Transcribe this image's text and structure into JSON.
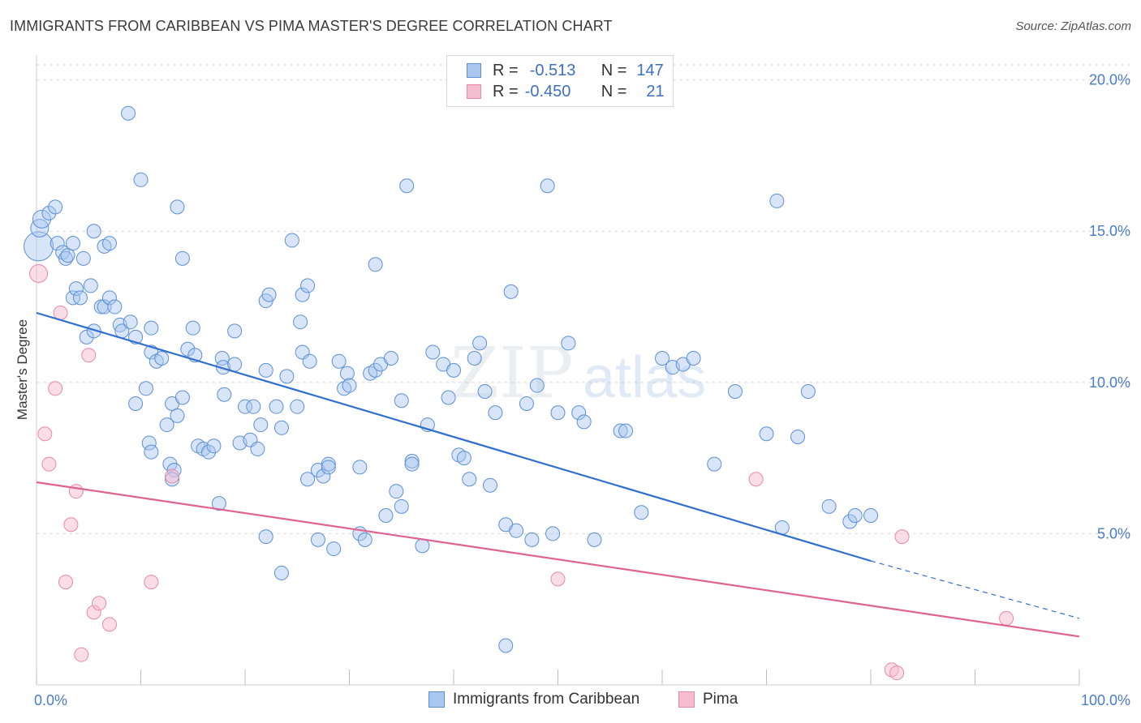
{
  "title": "IMMIGRANTS FROM CARIBBEAN VS PIMA MASTER'S DEGREE CORRELATION CHART",
  "source": "Source: ZipAtlas.com",
  "watermark": {
    "zip": "ZIP",
    "atlas": "atlas"
  },
  "legend": {
    "rows": [
      {
        "r_label": "R =",
        "r_value": "-0.513",
        "n_label": "N =",
        "n_value": "147"
      },
      {
        "r_label": "R =",
        "r_value": "-0.450",
        "n_label": "N =",
        "n_value": "21"
      }
    ]
  },
  "colors": {
    "blue_fill": "#a9c6ef",
    "blue_stroke": "#5b8fd6",
    "blue_line": "#2f6fd0",
    "pink_fill": "#f6bcd0",
    "pink_stroke": "#e889a8",
    "pink_line": "#e0628f",
    "grid": "#d9d9d9"
  },
  "chart_data": {
    "type": "scatter",
    "title": "IMMIGRANTS FROM CARIBBEAN VS PIMA MASTER'S DEGREE CORRELATION CHART",
    "xlabel": "",
    "ylabel": "Master's Degree",
    "xlim": [
      0,
      100
    ],
    "ylim": [
      0,
      20.5
    ],
    "x_tick_labels": [
      "0.0%",
      "100.0%"
    ],
    "y_ticks": [
      5,
      10,
      15,
      20
    ],
    "y_tick_labels": [
      "5.0%",
      "10.0%",
      "15.0%",
      "20.0%"
    ],
    "grid": true,
    "legend_position": "bottom",
    "series": [
      {
        "name": "Immigrants from Caribbean",
        "r": -0.513,
        "n": 147,
        "trend": {
          "x0": 0,
          "y0": 12.3,
          "x1": 80,
          "y1": 4.1,
          "dash_to": 100,
          "dash_y": 2.2
        },
        "points": [
          [
            0.2,
            14.5
          ],
          [
            0.3,
            15.1
          ],
          [
            0.5,
            15.4
          ],
          [
            1.2,
            15.6
          ],
          [
            1.8,
            15.8
          ],
          [
            2.0,
            14.6
          ],
          [
            2.5,
            14.3
          ],
          [
            2.8,
            14.1
          ],
          [
            3.0,
            14.2
          ],
          [
            3.5,
            14.6
          ],
          [
            4.5,
            14.1
          ],
          [
            3.5,
            12.8
          ],
          [
            3.8,
            13.1
          ],
          [
            4.2,
            12.8
          ],
          [
            5.2,
            13.2
          ],
          [
            5.5,
            15.0
          ],
          [
            6.5,
            14.5
          ],
          [
            7.0,
            14.6
          ],
          [
            6.2,
            12.5
          ],
          [
            6.5,
            12.5
          ],
          [
            7.0,
            12.8
          ],
          [
            7.5,
            12.5
          ],
          [
            8.0,
            11.9
          ],
          [
            8.2,
            11.7
          ],
          [
            9.0,
            12.0
          ],
          [
            9.5,
            11.5
          ],
          [
            4.8,
            11.5
          ],
          [
            5.5,
            11.7
          ],
          [
            8.8,
            18.9
          ],
          [
            10.0,
            16.7
          ],
          [
            11.0,
            11.0
          ],
          [
            11.5,
            10.7
          ],
          [
            12.0,
            10.8
          ],
          [
            11.0,
            11.8
          ],
          [
            13.5,
            15.8
          ],
          [
            14.5,
            11.1
          ],
          [
            15.0,
            11.8
          ],
          [
            15.2,
            10.9
          ],
          [
            14.0,
            14.1
          ],
          [
            10.5,
            9.8
          ],
          [
            9.5,
            9.3
          ],
          [
            10.8,
            8.0
          ],
          [
            11.0,
            7.7
          ],
          [
            12.5,
            8.6
          ],
          [
            13.0,
            9.3
          ],
          [
            13.5,
            8.9
          ],
          [
            14.0,
            9.5
          ],
          [
            12.8,
            7.3
          ],
          [
            13.2,
            7.1
          ],
          [
            13.0,
            6.8
          ],
          [
            15.5,
            7.9
          ],
          [
            16.0,
            7.8
          ],
          [
            16.5,
            7.7
          ],
          [
            17.0,
            7.9
          ],
          [
            17.5,
            6.0
          ],
          [
            18.0,
            9.6
          ],
          [
            17.8,
            10.8
          ],
          [
            17.9,
            10.5
          ],
          [
            19.0,
            10.6
          ],
          [
            19.0,
            11.7
          ],
          [
            20.0,
            9.2
          ],
          [
            19.5,
            8.0
          ],
          [
            20.5,
            8.1
          ],
          [
            20.8,
            9.2
          ],
          [
            21.2,
            7.8
          ],
          [
            21.5,
            8.6
          ],
          [
            22.0,
            10.4
          ],
          [
            22.0,
            12.7
          ],
          [
            22.3,
            12.9
          ],
          [
            23.0,
            9.2
          ],
          [
            23.5,
            8.5
          ],
          [
            24.0,
            10.2
          ],
          [
            24.5,
            14.7
          ],
          [
            25.0,
            9.2
          ],
          [
            25.3,
            12.0
          ],
          [
            25.5,
            12.9
          ],
          [
            26.0,
            13.2
          ],
          [
            25.5,
            11.0
          ],
          [
            26.2,
            10.7
          ],
          [
            27.0,
            7.1
          ],
          [
            28.0,
            7.3
          ],
          [
            27.5,
            6.9
          ],
          [
            28.0,
            7.2
          ],
          [
            28.5,
            4.5
          ],
          [
            26.0,
            6.8
          ],
          [
            27.0,
            4.8
          ],
          [
            22.0,
            4.9
          ],
          [
            23.5,
            3.7
          ],
          [
            29.0,
            10.7
          ],
          [
            29.5,
            9.8
          ],
          [
            29.8,
            10.3
          ],
          [
            30.0,
            9.9
          ],
          [
            31.0,
            7.2
          ],
          [
            32.0,
            10.3
          ],
          [
            32.5,
            10.4
          ],
          [
            33.0,
            10.6
          ],
          [
            34.0,
            10.8
          ],
          [
            35.0,
            9.4
          ],
          [
            36.0,
            7.4
          ],
          [
            34.5,
            6.4
          ],
          [
            35.0,
            5.9
          ],
          [
            33.5,
            5.6
          ],
          [
            31.0,
            5.0
          ],
          [
            31.5,
            4.8
          ],
          [
            32.5,
            13.9
          ],
          [
            35.5,
            16.5
          ],
          [
            36.0,
            7.3
          ],
          [
            37.0,
            4.6
          ],
          [
            37.5,
            8.6
          ],
          [
            38.0,
            11.0
          ],
          [
            39.0,
            10.6
          ],
          [
            39.5,
            9.5
          ],
          [
            40.0,
            10.4
          ],
          [
            40.5,
            7.6
          ],
          [
            41.0,
            7.5
          ],
          [
            41.5,
            6.8
          ],
          [
            42.0,
            10.8
          ],
          [
            42.5,
            11.3
          ],
          [
            43.0,
            9.7
          ],
          [
            43.5,
            6.6
          ],
          [
            44.0,
            9.0
          ],
          [
            45.0,
            5.3
          ],
          [
            45.5,
            13.0
          ],
          [
            46.0,
            5.1
          ],
          [
            47.0,
            9.3
          ],
          [
            47.5,
            4.8
          ],
          [
            48.0,
            9.9
          ],
          [
            49.0,
            16.5
          ],
          [
            49.5,
            5.0
          ],
          [
            50.0,
            9.0
          ],
          [
            51.0,
            11.3
          ],
          [
            52.0,
            9.0
          ],
          [
            52.5,
            8.7
          ],
          [
            53.5,
            4.8
          ],
          [
            56.0,
            8.4
          ],
          [
            56.5,
            8.4
          ],
          [
            58.0,
            5.7
          ],
          [
            60.0,
            10.8
          ],
          [
            61.0,
            10.5
          ],
          [
            62.0,
            10.6
          ],
          [
            63.0,
            10.8
          ],
          [
            65.0,
            7.3
          ],
          [
            67.0,
            9.7
          ],
          [
            70.0,
            8.3
          ],
          [
            71.0,
            16.0
          ],
          [
            71.5,
            5.2
          ],
          [
            73.0,
            8.2
          ],
          [
            74.0,
            9.7
          ],
          [
            76.0,
            5.9
          ],
          [
            78.0,
            5.4
          ],
          [
            78.5,
            5.6
          ],
          [
            80.0,
            5.6
          ],
          [
            45.0,
            1.3
          ]
        ]
      },
      {
        "name": "Pima",
        "r": -0.45,
        "n": 21,
        "trend": {
          "x0": 0,
          "y0": 6.7,
          "x1": 100,
          "y1": 1.6
        },
        "points": [
          [
            0.2,
            13.6
          ],
          [
            0.8,
            8.3
          ],
          [
            1.2,
            7.3
          ],
          [
            1.8,
            9.8
          ],
          [
            2.3,
            12.3
          ],
          [
            2.8,
            3.4
          ],
          [
            3.3,
            5.3
          ],
          [
            3.8,
            6.4
          ],
          [
            4.3,
            1.0
          ],
          [
            5.0,
            10.9
          ],
          [
            5.5,
            2.4
          ],
          [
            6.0,
            2.7
          ],
          [
            7.0,
            2.0
          ],
          [
            11.0,
            3.4
          ],
          [
            13.0,
            6.9
          ],
          [
            50.0,
            3.5
          ],
          [
            69.0,
            6.8
          ],
          [
            82.0,
            0.5
          ],
          [
            82.5,
            0.4
          ],
          [
            83.0,
            4.9
          ],
          [
            93.0,
            2.2
          ]
        ]
      }
    ]
  },
  "bottom_legend": [
    {
      "label": "Immigrants from Caribbean"
    },
    {
      "label": "Pima"
    }
  ]
}
